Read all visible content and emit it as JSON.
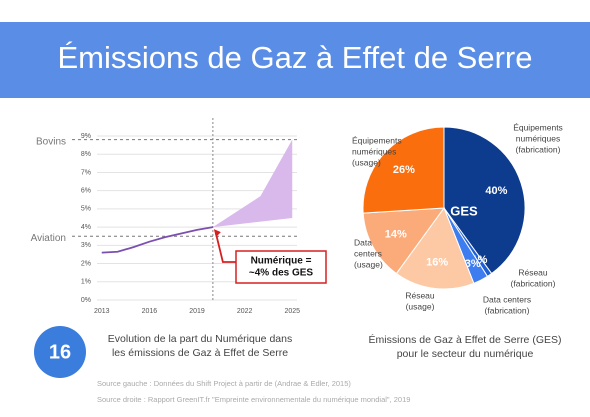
{
  "header": {
    "title": "Émissions de Gaz à Effet de Serre"
  },
  "chart_data": [
    {
      "type": "line",
      "x": [
        2013,
        2014,
        2015,
        2016,
        2017,
        2018,
        2019,
        2020
      ],
      "series": [
        {
          "color": "#7b4fb0",
          "values": [
            2.6,
            2.65,
            2.9,
            3.2,
            3.45,
            3.65,
            3.85,
            4.0
          ]
        }
      ],
      "band": {
        "color": "#d9b8ec",
        "x": [
          2020,
          2023,
          2025
        ],
        "low": [
          4.0,
          4.3,
          4.5
        ],
        "high": [
          4.0,
          5.7,
          8.8
        ]
      },
      "xlim": [
        2012.7,
        2025.3
      ],
      "xticks": [
        2013,
        2016,
        2019,
        2022,
        2025
      ],
      "ylim": [
        0,
        9
      ],
      "yticks": [
        {
          "value": 0,
          "label": "0%"
        },
        {
          "value": 1,
          "label": "1%"
        },
        {
          "value": 2,
          "label": "2%"
        },
        {
          "value": 3,
          "label": "3%"
        },
        {
          "value": 4,
          "label": "4%"
        },
        {
          "value": 5,
          "label": "5%"
        },
        {
          "value": 6,
          "label": "6%"
        },
        {
          "value": 7,
          "label": "7%"
        },
        {
          "value": 8,
          "label": "8%"
        },
        {
          "value": 9,
          "label": "9%"
        }
      ],
      "grid": true,
      "reference_lines": [
        {
          "label": "Bovins",
          "value": 8.8
        },
        {
          "label": "Aviation",
          "value": 3.5
        }
      ],
      "vline": 2020,
      "annotation": [
        "Numérique =",
        "~4% des GES"
      ],
      "caption": [
        "Evolution de la part du Numérique dans",
        "les émissions de Gaz à Effet de Serre"
      ]
    },
    {
      "type": "pie",
      "center_label": "GES",
      "labels": [
        [
          "Équipements",
          "numériques",
          "(fabrication)"
        ],
        [
          "Réseau",
          "(fabrication)"
        ],
        [
          "Data centers",
          "(fabrication)"
        ],
        [
          "Réseau",
          "(usage)"
        ],
        [
          "Data",
          "centers",
          "(usage)"
        ],
        [
          "Équipements",
          "numériques",
          "(usage)"
        ]
      ],
      "values": [
        40,
        1,
        3,
        16,
        14,
        26
      ],
      "value_labels": [
        "40%",
        "1%",
        "3%",
        "16%",
        "14%",
        "26%"
      ],
      "colors": [
        "#0d3b8e",
        "#1f5fd6",
        "#3d7df0",
        "#fcc9a4",
        "#fbab7a",
        "#fb6e0e"
      ],
      "caption": [
        "Émissions de Gaz à Effet de Serre (GES)",
        "pour le secteur du numérique"
      ]
    }
  ],
  "slide_number": "16",
  "sources": [
    "Source gauche :  Données du Shift Project à partir de (Andrae & Edler, 2015)",
    "Source droite : Rapport GreenIT.fr \"Empreinte environnementale du numérique mondial\", 2019"
  ]
}
